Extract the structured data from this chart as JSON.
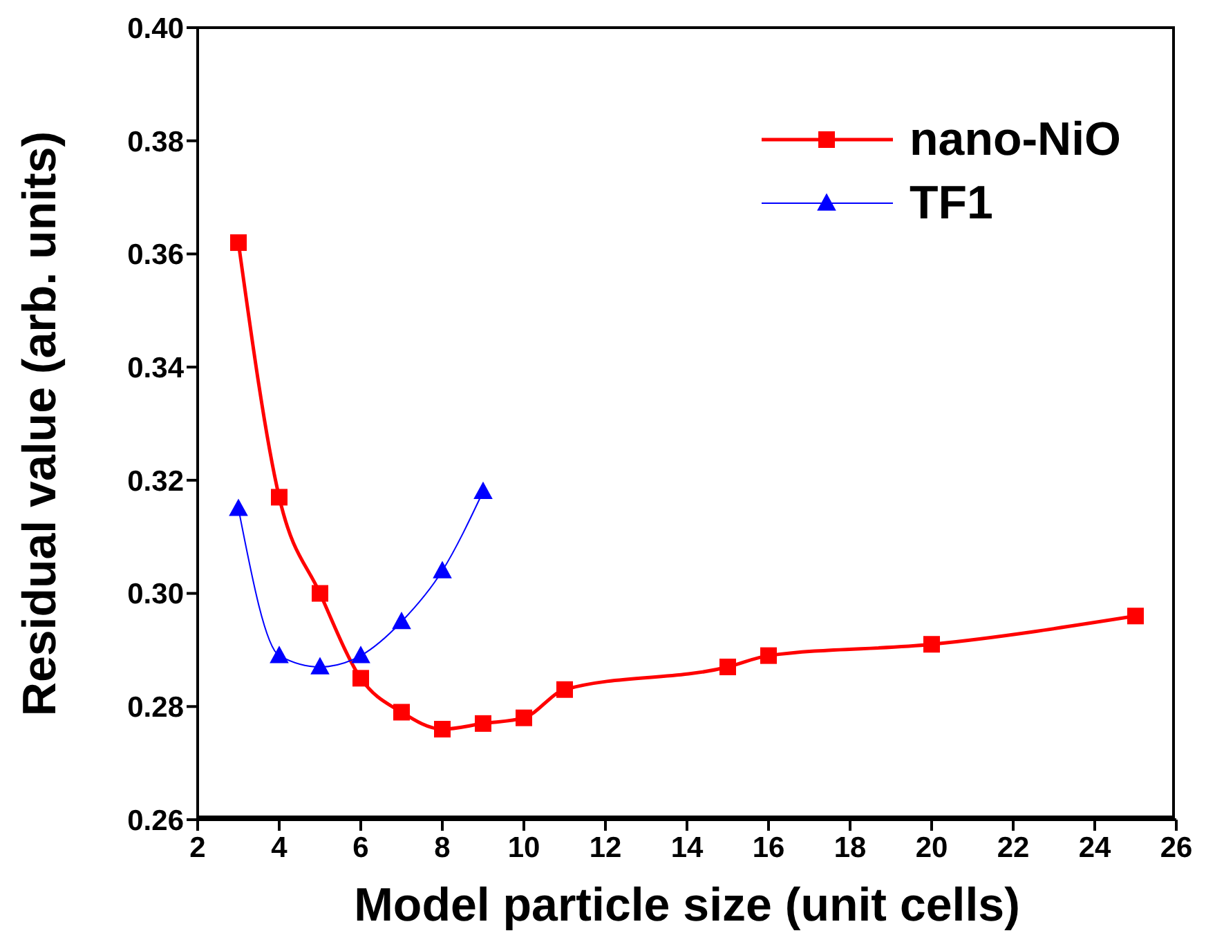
{
  "chart_data": {
    "type": "line",
    "xlabel": "Model particle size (unit cells)",
    "ylabel": "Residual value (arb. units)",
    "xlim": [
      2,
      26
    ],
    "xticks": [
      2,
      4,
      6,
      8,
      10,
      12,
      14,
      16,
      18,
      20,
      22,
      24,
      26
    ],
    "ylim": [
      0.26,
      0.4
    ],
    "yticks": [
      0.26,
      0.28,
      {
        "value": 0.3,
        "label": "0.30"
      },
      0.32,
      0.34,
      0.36,
      0.38,
      {
        "value": 0.4,
        "label": "0.40"
      }
    ],
    "grid": false,
    "legend": "top right",
    "line_style": "solid",
    "series": [
      {
        "name": "nano-NiO",
        "color": "#ff0000",
        "marker": "square",
        "x": [
          3,
          4,
          5,
          6,
          7,
          8,
          9,
          10,
          11,
          15,
          16,
          20,
          25
        ],
        "values": [
          0.362,
          0.317,
          0.3,
          0.285,
          0.279,
          0.276,
          0.277,
          0.278,
          0.283,
          0.287,
          0.289,
          0.291,
          0.296
        ]
      },
      {
        "name": "TF1",
        "color": "#0000ff",
        "marker": "triangle",
        "x": [
          3,
          4,
          5,
          6,
          7,
          8,
          9
        ],
        "values": [
          0.315,
          0.289,
          0.287,
          0.289,
          0.295,
          0.304,
          0.318
        ]
      }
    ]
  }
}
